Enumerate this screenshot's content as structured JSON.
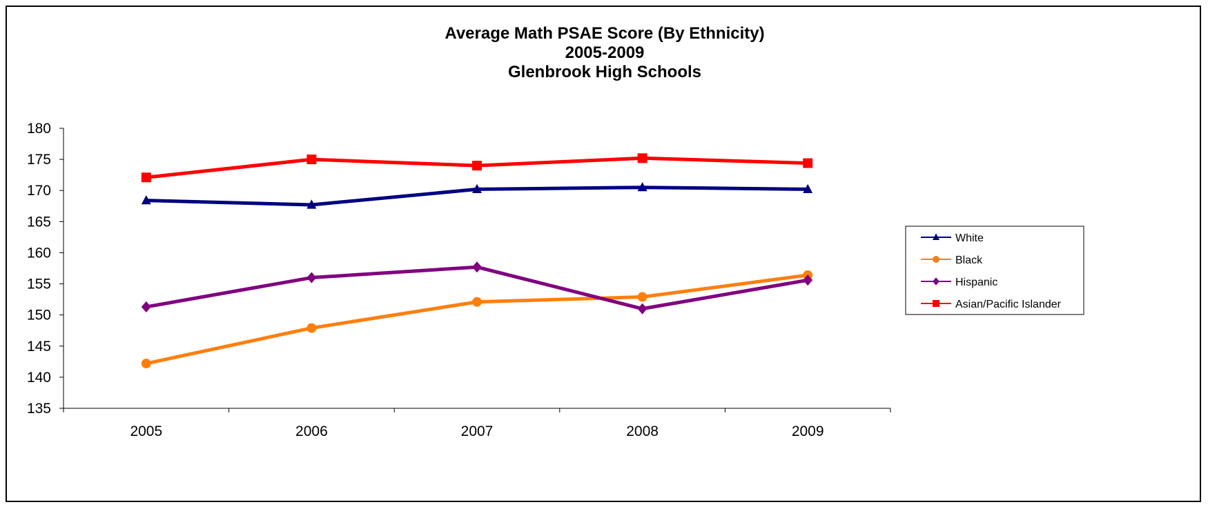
{
  "chart_data": {
    "type": "line",
    "title_lines": [
      "Average Math PSAE Score (By Ethnicity)",
      "2005-2009",
      "Glenbrook High Schools"
    ],
    "xlabel": "",
    "ylabel": "",
    "categories": [
      "2005",
      "2006",
      "2007",
      "2008",
      "2009"
    ],
    "ylim": [
      135,
      180
    ],
    "yticks": [
      "135",
      "140",
      "145",
      "150",
      "155",
      "160",
      "165",
      "170",
      "175",
      "180"
    ],
    "grid": false,
    "legend_position": "right",
    "series": [
      {
        "name": "White",
        "color": "#000080",
        "marker": "triangle",
        "values": [
          168.4,
          167.7,
          170.2,
          170.5,
          170.2
        ]
      },
      {
        "name": "Black",
        "color": "#FF7F0E",
        "marker": "circle",
        "values": [
          142.2,
          147.9,
          152.1,
          152.9,
          156.4
        ]
      },
      {
        "name": "Hispanic",
        "color": "#800080",
        "marker": "diamond",
        "values": [
          151.3,
          156.0,
          157.7,
          151.0,
          155.6
        ]
      },
      {
        "name": "Asian/Pacific Islander",
        "color": "#FF0000",
        "marker": "square",
        "values": [
          172.1,
          175.0,
          174.0,
          175.2,
          174.4
        ]
      }
    ]
  }
}
